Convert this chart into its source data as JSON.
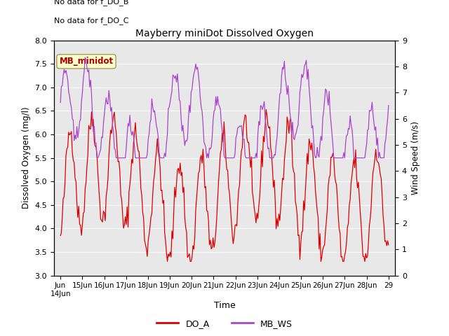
{
  "title": "Mayberry miniDot Dissolved Oxygen",
  "xlabel": "Time",
  "ylabel_left": "Dissolved Oxygen (mg/l)",
  "ylabel_right": "Wind Speed (m/s)",
  "ylim_left": [
    3.0,
    8.0
  ],
  "ylim_right": [
    0.0,
    9.0
  ],
  "yticks_left": [
    3.0,
    3.5,
    4.0,
    4.5,
    5.0,
    5.5,
    6.0,
    6.5,
    7.0,
    7.5,
    8.0
  ],
  "yticks_right": [
    0.0,
    1.0,
    2.0,
    3.0,
    4.0,
    5.0,
    6.0,
    7.0,
    8.0,
    9.0
  ],
  "annotations": [
    "No data for f_DO_B",
    "No data for f_DO_C"
  ],
  "legend_label": "MB_minidot",
  "do_a_color": "#dd0000",
  "mb_ws_color": "#aa44cc",
  "bg_color": "#e8e8e8",
  "line_legend": [
    {
      "label": "DO_A",
      "color": "#dd0000"
    },
    {
      "label": "MB_WS",
      "color": "#aa44cc"
    }
  ],
  "figsize": [
    6.4,
    4.8
  ],
  "dpi": 100
}
